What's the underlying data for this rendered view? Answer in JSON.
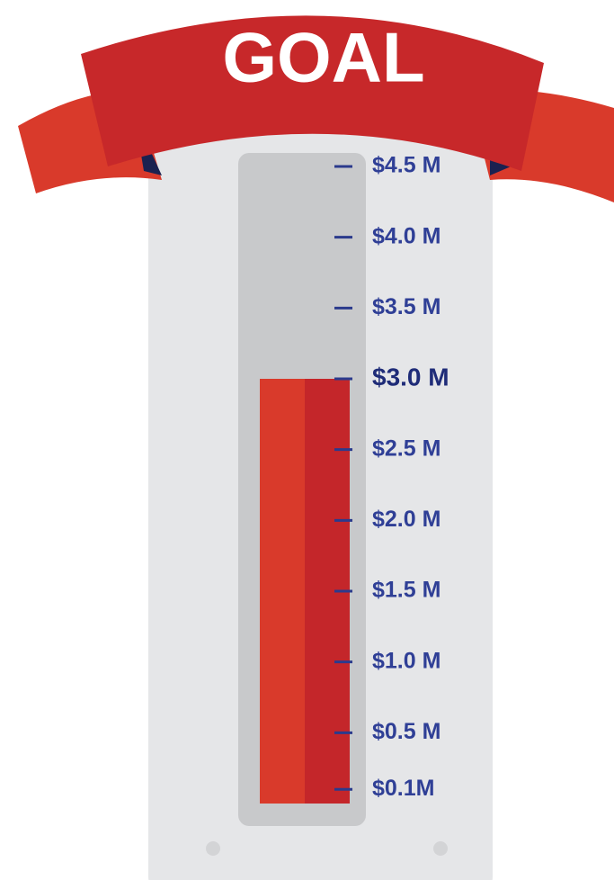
{
  "chart_data": {
    "type": "bar",
    "title": "GOAL",
    "categories": [
      null
    ],
    "values": [
      3
    ],
    "color": "#d93a2b",
    "ylim": [
      0,
      4.5
    ],
    "yticks": [
      {
        "value": 0.1,
        "label": "$0.1M"
      },
      {
        "value": 0.5,
        "label": "$0.5 M"
      },
      {
        "value": 1,
        "label": "$1.0 M"
      },
      {
        "value": 1.5,
        "label": "$1.5 M"
      },
      {
        "value": 2,
        "label": "$2.0 M"
      },
      {
        "value": 2.5,
        "label": "$2.5 M"
      },
      {
        "value": 3,
        "label": "$3.0 M"
      },
      {
        "value": 3.5,
        "label": "$3.5 M"
      },
      {
        "value": 4,
        "label": "$4.0 M"
      },
      {
        "value": 4.5,
        "label": "$4.5 M"
      }
    ]
  }
}
